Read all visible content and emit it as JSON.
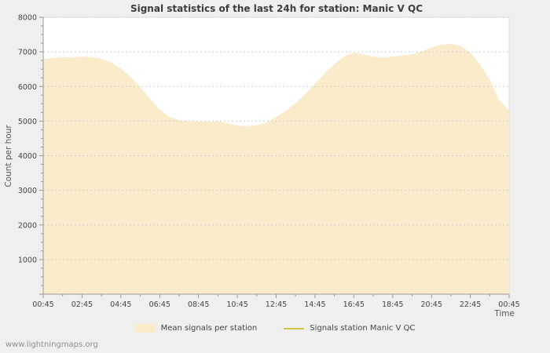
{
  "page": {
    "watermark": "www.lightningmaps.org",
    "background": "#efefed"
  },
  "chart_data": {
    "type": "area",
    "title": "Signal statistics of the last 24h for station: Manic V QC",
    "xlabel": "Time",
    "ylabel": "Count per hour",
    "ylim": [
      0,
      8000
    ],
    "grid": "horizontal-dashed",
    "legend_position": "bottom",
    "plot_background": "#ffffff",
    "x_start_hour": 0,
    "x_step_hours": 0.5,
    "x_tick_hours": [
      0,
      2,
      4,
      6,
      8,
      10,
      12,
      14,
      16,
      18,
      20,
      22,
      24
    ],
    "x_tick_labels": [
      "00:45",
      "02:45",
      "04:45",
      "06:45",
      "08:45",
      "10:45",
      "12:45",
      "14:45",
      "16:45",
      "18:45",
      "20:45",
      "22:45",
      "00:45"
    ],
    "y_tick_step": 1000,
    "y_minor_tick_step": 250,
    "y_tick_values": [
      1000,
      2000,
      3000,
      4000,
      5000,
      6000,
      7000,
      8000
    ],
    "series": [
      {
        "name": "Mean signals per station",
        "style": "area",
        "color": "#faecca",
        "values": [
          6780,
          6830,
          6850,
          6840,
          6860,
          6850,
          6800,
          6700,
          6520,
          6280,
          5980,
          5650,
          5330,
          5120,
          5030,
          5000,
          4990,
          4980,
          4990,
          4940,
          4880,
          4850,
          4880,
          4960,
          5120,
          5300,
          5520,
          5780,
          6080,
          6380,
          6650,
          6870,
          6980,
          6930,
          6860,
          6830,
          6860,
          6900,
          6930,
          7010,
          7130,
          7200,
          7230,
          7180,
          6980,
          6650,
          6200,
          5600,
          5300
        ]
      }
    ],
    "legend": [
      {
        "label": "Mean signals per station",
        "swatch": "area",
        "color": "#faecca"
      },
      {
        "label": "Signals station Manic V QC",
        "swatch": "line",
        "color": "#d0c24a"
      }
    ]
  }
}
